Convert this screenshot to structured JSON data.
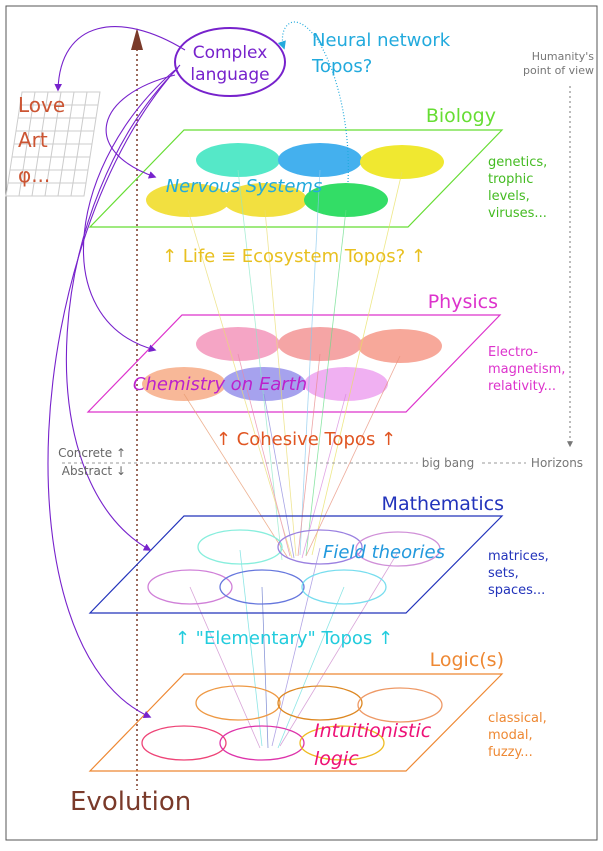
{
  "top": {
    "complex_language": [
      "Complex",
      "language"
    ],
    "neural_network": [
      "Neural network",
      "Topos?"
    ],
    "humanity": [
      "Humanity's",
      "point of view"
    ],
    "culture": [
      "Love",
      "Art",
      "φ..."
    ]
  },
  "layers": {
    "biology": {
      "title": "Biology",
      "center": "Nervous Systems",
      "examples": [
        "genetics,",
        "trophic",
        "levels,",
        "viruses..."
      ]
    },
    "physics": {
      "title": "Physics",
      "center": "Chemistry on Earth",
      "examples": [
        "Electro-",
        "magnetism,",
        "relativity..."
      ]
    },
    "mathematics": {
      "title": "Mathematics",
      "center": "Field theories",
      "examples": [
        "matrices,",
        "sets,",
        "spaces..."
      ]
    },
    "logic": {
      "title": "Logic(s)",
      "center": [
        "Intuitionistic",
        "logic"
      ],
      "examples": [
        "classical,",
        "modal,",
        "fuzzy..."
      ]
    }
  },
  "between": {
    "life": "↑ Life ≡ Ecosystem Topos? ↑",
    "cohesive": "↑ Cohesive Topos ↑",
    "elementary": "↑ \"Elementary\" Topos ↑"
  },
  "divider": {
    "concrete": "Concrete ↑",
    "abstract": "Abstract ↓",
    "big_bang": "big bang",
    "horizons": "Horizons"
  },
  "axis_label": "Evolution",
  "colors": {
    "biology": "#66dd33",
    "physics": "#dd33cc",
    "mathematics": "#2233bb",
    "logic": "#ee8833",
    "language": "#7722cc",
    "neural": "#22aadd",
    "culture": "#cc5533",
    "cohesive": "#e05522",
    "elementary": "#22ccdd",
    "life": "#e8c020",
    "evolution": "#7a3a2a"
  }
}
